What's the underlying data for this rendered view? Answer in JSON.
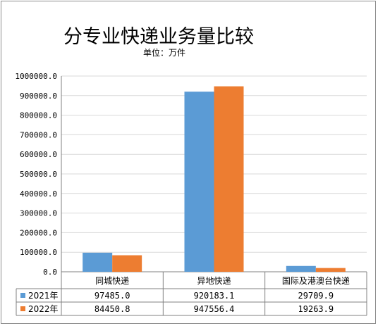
{
  "chart_data": {
    "type": "bar",
    "title": "分专业快递业务量比较",
    "subtitle": "单位：万件",
    "categories": [
      "同城快递",
      "异地快递",
      "国际及港澳台快递"
    ],
    "series": [
      {
        "name": "2021年",
        "values": [
          97485.0,
          920183.1,
          29709.9
        ],
        "labels": [
          "97485.0",
          "920183.1",
          "29709.9"
        ],
        "color": "#5b9bd5"
      },
      {
        "name": "2022年",
        "values": [
          84450.8,
          947556.4,
          19263.9
        ],
        "labels": [
          "84450.8",
          "947556.4",
          "19263.9"
        ],
        "color": "#ed7d31"
      }
    ],
    "ylim": [
      0,
      1000000
    ],
    "yticks": [
      "0.0",
      "100000.0",
      "200000.0",
      "300000.0",
      "400000.0",
      "500000.0",
      "600000.0",
      "700000.0",
      "800000.0",
      "900000.0",
      "1000000.0"
    ],
    "grid": true,
    "data_table": true
  }
}
